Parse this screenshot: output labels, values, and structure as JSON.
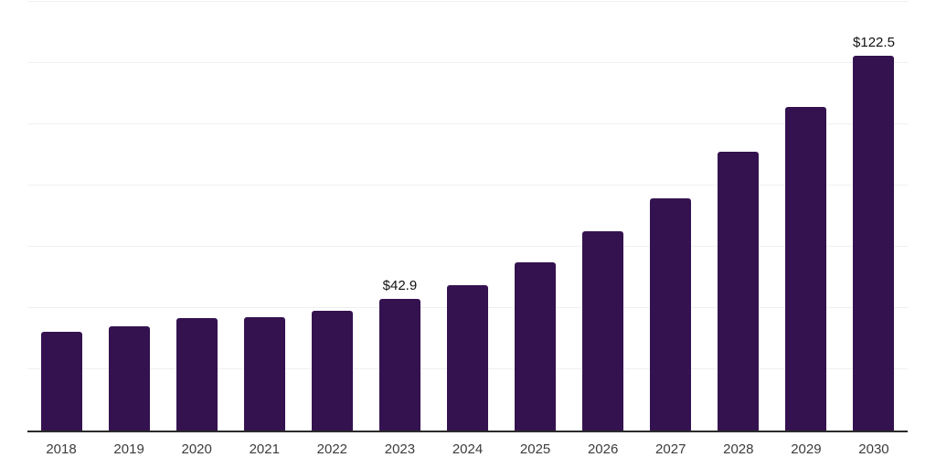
{
  "chart_data": {
    "type": "bar",
    "title": "",
    "xlabel": "",
    "ylabel": "",
    "categories": [
      "2018",
      "2019",
      "2020",
      "2021",
      "2022",
      "2023",
      "2024",
      "2025",
      "2026",
      "2027",
      "2028",
      "2029",
      "2030"
    ],
    "values": [
      32.1,
      33.9,
      36.6,
      36.9,
      39.0,
      42.9,
      47.6,
      54.8,
      65.2,
      75.9,
      91.1,
      105.7,
      122.5
    ],
    "data_labels": {
      "5": "$42.9",
      "12": "$122.5"
    },
    "ylim": [
      0,
      140
    ],
    "gridline_step": 20,
    "grid": true,
    "legend": false,
    "y_tick_labels_visible": false,
    "colors": {
      "bar": "#341250",
      "gridline": "#f0f0f0",
      "axis": "#2b2b2b",
      "x_tick_label": "#3c3c3c",
      "data_label": "#111111"
    }
  }
}
